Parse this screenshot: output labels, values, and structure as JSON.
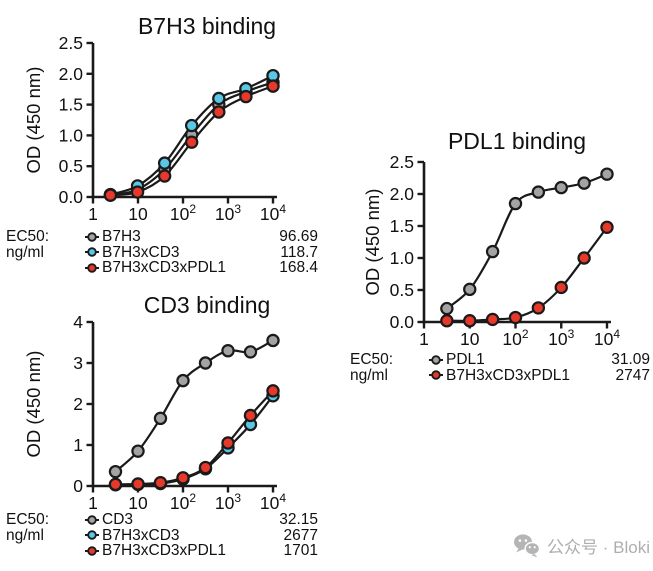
{
  "watermark": {
    "icon": "wechat-icon",
    "text": "公众号 · Bloki"
  },
  "chart_data": [
    {
      "id": "b7h3",
      "type": "line",
      "title": "B7H3 binding",
      "xlabel": "",
      "ylabel": "OD (450 nm)",
      "xscale": "log",
      "xlim": [
        1,
        10000
      ],
      "ylim": [
        0,
        2.5
      ],
      "yticks": [
        "0.0",
        "0.5",
        "1.0",
        "1.5",
        "2.0",
        "2.5"
      ],
      "xticks": [
        "1",
        "10",
        "10^2",
        "10^3",
        "10^4"
      ],
      "legend_title": "EC50:",
      "legend_units": "ng/ml",
      "x": [
        2.44,
        9.77,
        39.1,
        156,
        625,
        2500,
        10000
      ],
      "series": [
        {
          "name": "B7H3",
          "ec50": "96.69",
          "color": "#a3a3a3",
          "values": [
            0.03,
            0.12,
            0.45,
            1.01,
            1.5,
            1.71,
            1.86
          ]
        },
        {
          "name": "B7H3xCD3",
          "ec50": "118.7",
          "color": "#58c8e6",
          "values": [
            0.04,
            0.18,
            0.55,
            1.16,
            1.6,
            1.76,
            1.97
          ]
        },
        {
          "name": "B7H3xCD3xPDL1",
          "ec50": "168.4",
          "color": "#e6392c",
          "values": [
            0.03,
            0.08,
            0.34,
            0.89,
            1.38,
            1.63,
            1.8
          ]
        }
      ]
    },
    {
      "id": "cd3",
      "type": "line",
      "title": "CD3 binding",
      "xlabel": "",
      "ylabel": "OD (450 nm)",
      "xscale": "log",
      "xlim": [
        1,
        10000
      ],
      "ylim": [
        0,
        4
      ],
      "yticks": [
        "0",
        "1",
        "2",
        "3",
        "4"
      ],
      "xticks": [
        "1",
        "10",
        "10^2",
        "10^3",
        "10^4"
      ],
      "legend_title": "EC50:",
      "legend_units": "ng/ml",
      "x": [
        3.16,
        10,
        31.6,
        100,
        316,
        1000,
        3160,
        10000
      ],
      "series": [
        {
          "name": "CD3",
          "ec50": "32.15",
          "color": "#a3a3a3",
          "values": [
            0.35,
            0.85,
            1.65,
            2.57,
            3.0,
            3.3,
            3.27,
            3.55
          ]
        },
        {
          "name": "B7H3xCD3",
          "ec50": "2677",
          "color": "#58c8e6",
          "values": [
            0.03,
            0.04,
            0.06,
            0.17,
            0.42,
            0.93,
            1.5,
            2.2
          ]
        },
        {
          "name": "B7H3xCD3xPDL1",
          "ec50": "1701",
          "color": "#e6392c",
          "values": [
            0.04,
            0.05,
            0.08,
            0.2,
            0.45,
            1.05,
            1.72,
            2.32
          ]
        }
      ]
    },
    {
      "id": "pdl1",
      "type": "line",
      "title": "PDL1 binding",
      "xlabel": "",
      "ylabel": "OD (450 nm)",
      "xscale": "log",
      "xlim": [
        1,
        10000
      ],
      "ylim": [
        0,
        2.5
      ],
      "yticks": [
        "0.0",
        "0.5",
        "1.0",
        "1.5",
        "2.0",
        "2.5"
      ],
      "xticks": [
        "1",
        "10",
        "10^2",
        "10^3",
        "10^4"
      ],
      "legend_title": "EC50:",
      "legend_units": "ng/ml",
      "x": [
        3.16,
        10,
        31.6,
        100,
        316,
        1000,
        3160,
        10000
      ],
      "series": [
        {
          "name": "PDL1",
          "ec50": "31.09",
          "color": "#a3a3a3",
          "values": [
            0.21,
            0.51,
            1.1,
            1.85,
            2.03,
            2.1,
            2.17,
            2.31
          ]
        },
        {
          "name": "B7H3xCD3xPDL1",
          "ec50": "2747",
          "color": "#e6392c",
          "values": [
            0.02,
            0.02,
            0.04,
            0.07,
            0.22,
            0.54,
            1.0,
            1.48
          ]
        }
      ]
    }
  ]
}
